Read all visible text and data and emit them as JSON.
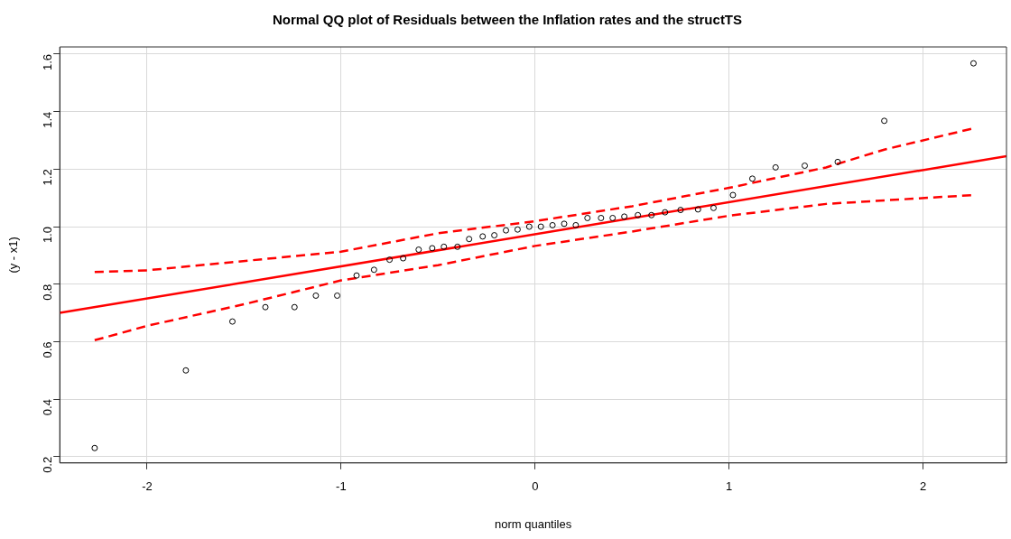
{
  "chart_data": {
    "type": "scatter",
    "title": "Normal QQ plot of Residuals between the Inflation rates and the structTS",
    "xlabel": "norm quantiles",
    "ylabel": "(y - x1)",
    "xlim": [
      -2.45,
      2.43
    ],
    "ylim": [
      0.178,
      1.625
    ],
    "xticks": [
      -2,
      -1,
      0,
      1,
      2
    ],
    "yticks": [
      0.2,
      0.4,
      0.6,
      0.8,
      {
        "value": 1,
        "label": "1.0"
      },
      1.2,
      1.4,
      1.6
    ],
    "grid": true,
    "legend": false,
    "series": [
      {
        "type": "scatter",
        "color": "#000000",
        "marker": "circle",
        "x": [
          -2.27,
          -1.8,
          -1.56,
          -1.39,
          -1.24,
          -1.13,
          -1.02,
          -0.92,
          -0.83,
          -0.75,
          -0.68,
          -0.6,
          -0.53,
          -0.47,
          -0.4,
          -0.34,
          -0.27,
          -0.21,
          -0.15,
          -0.09,
          -0.03,
          0.03,
          0.09,
          0.15,
          0.21,
          0.27,
          0.34,
          0.4,
          0.46,
          0.53,
          0.6,
          0.67,
          0.75,
          0.84,
          0.92,
          1.02,
          1.12,
          1.24,
          1.39,
          1.56,
          1.8,
          2.26
        ],
        "values": [
          0.23,
          0.5,
          0.67,
          0.72,
          0.72,
          0.76,
          0.76,
          0.83,
          0.85,
          0.885,
          0.89,
          0.92,
          0.925,
          0.93,
          0.93,
          0.957,
          0.966,
          0.97,
          0.987,
          0.99,
          1.0,
          1.0,
          1.005,
          1.01,
          1.005,
          1.03,
          1.03,
          1.03,
          1.035,
          1.04,
          1.04,
          1.05,
          1.058,
          1.06,
          1.065,
          1.11,
          1.167,
          1.206,
          1.212,
          1.225,
          1.368,
          1.568
        ]
      },
      {
        "type": "line",
        "color": "#ff0000",
        "line_style": "solid",
        "x": [
          -2.45,
          2.43
        ],
        "values": [
          0.7,
          1.245
        ]
      },
      {
        "type": "line",
        "color": "#ff0000",
        "line_style": "dashed",
        "x": [
          -2.27,
          -2,
          -1,
          -0.5,
          0,
          0.5,
          1,
          1.5,
          1.8,
          2.26
        ],
        "values": [
          0.842,
          0.848,
          0.913,
          0.977,
          1.019,
          1.071,
          1.135,
          1.206,
          1.268,
          1.342
        ]
      },
      {
        "type": "line",
        "color": "#ff0000",
        "line_style": "dashed",
        "x": [
          -2.27,
          -2,
          -1.5,
          -1,
          -0.5,
          0,
          0.5,
          1,
          1.5,
          2.26
        ],
        "values": [
          0.605,
          0.655,
          0.73,
          0.813,
          0.866,
          0.933,
          0.983,
          1.038,
          1.079,
          1.11
        ]
      }
    ]
  }
}
